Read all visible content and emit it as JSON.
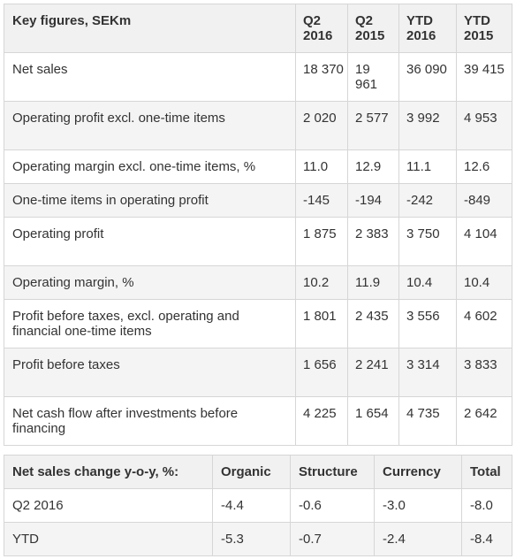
{
  "key_figures": {
    "header": {
      "title": "Key figures, SEKm",
      "columns": [
        "Q2 2016",
        "Q2 2015",
        "YTD 2016",
        "YTD 2015"
      ]
    },
    "rows": [
      {
        "label": "Net sales",
        "values": [
          "18 370",
          "19 961",
          "36 090",
          "39 415"
        ]
      },
      {
        "label": "Operating profit excl. one-time items",
        "values": [
          "2 020",
          "2 577",
          "3 992",
          "4 953"
        ]
      },
      {
        "label": "Operating margin excl. one-time items, %",
        "values": [
          "11.0",
          "12.9",
          "11.1",
          "12.6"
        ]
      },
      {
        "label": "One-time items in operating profit",
        "values": [
          "-145",
          "-194",
          "-242",
          "-849"
        ]
      },
      {
        "label": "Operating profit",
        "values": [
          "1 875",
          "2 383",
          "3 750",
          "4 104"
        ]
      },
      {
        "label": "Operating margin, %",
        "values": [
          "10.2",
          "11.9",
          "10.4",
          "10.4"
        ]
      },
      {
        "label": "Profit before taxes, excl. operating and financial one-time items",
        "values": [
          "1 801",
          "2 435",
          "3 556",
          "4 602"
        ]
      },
      {
        "label": "Profit before taxes",
        "values": [
          "1 656",
          "2 241",
          "3 314",
          "3 833"
        ]
      },
      {
        "label": "Net cash flow after investments before financing",
        "values": [
          "4 225",
          "1 654",
          "4 735",
          "2 642"
        ]
      }
    ]
  },
  "sales_change": {
    "header": {
      "title": "Net sales change y-o-y, %:",
      "columns": [
        "Organic",
        "Structure",
        "Currency",
        "Total"
      ]
    },
    "rows": [
      {
        "label": "Q2 2016",
        "values": [
          "-4.4",
          "-0.6",
          "-3.0",
          "-8.0"
        ]
      },
      {
        "label": "YTD",
        "values": [
          "-5.3",
          "-0.7",
          "-2.4",
          "-8.4"
        ]
      }
    ]
  }
}
